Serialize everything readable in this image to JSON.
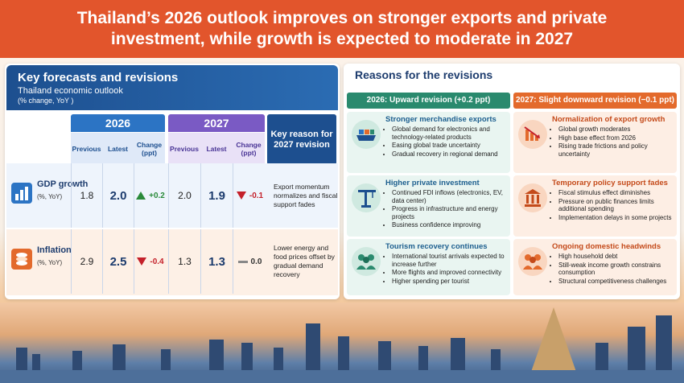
{
  "header": {
    "line1": "Thailand’s 2026 outlook improves on stronger exports and private",
    "line2": "investment, while growth is expected to moderate in 2027"
  },
  "left_panel": {
    "title": "Key forecasts and revisions",
    "subtitle": "Thailand economic outlook",
    "unit": "(% change, YoY )",
    "year_2026": "2026",
    "year_2027": "2027",
    "col_previous": "Previous",
    "col_latest": "Latest",
    "col_change": "Change (ppt)",
    "reason_header": "Key reason for 2027 revision",
    "rows": [
      {
        "label": "GDP growth",
        "unit": "(%, YoY)",
        "icon": "bar-chart-icon",
        "prev_2026": "1.8",
        "latest_2026": "2.0",
        "change_2026": "+0.2",
        "prev_2027": "2.0",
        "latest_2027": "1.9",
        "change_2027": "-0.1",
        "reason": "Export momentum normalizes and fiscal support fades"
      },
      {
        "label": "Inflation",
        "unit": "(%, YoY)",
        "icon": "coins-icon",
        "prev_2026": "2.9",
        "latest_2026": "2.5",
        "change_2026": "-0.4",
        "prev_2027": "1.3",
        "latest_2027": "1.3",
        "change_2027": "0.0",
        "reason": "Lower energy and food prices offset by gradual demand recovery"
      }
    ]
  },
  "right_panel": {
    "title": "Reasons for the revisions",
    "up_header": "2026: Upward revision (+0.2 ppt)",
    "down_header": "2027: Slight downward revision (−0.1 ppt)",
    "up_boxes": [
      {
        "title": "Stronger merchandise exports",
        "icon": "cargo-ship-icon",
        "bullets": [
          "Global demand for electronics and technology-related products",
          "Easing global trade uncertainty",
          "Gradual recovery in regional demand"
        ]
      },
      {
        "title": "Higher private investment",
        "icon": "construction-crane-icon",
        "bullets": [
          "Continued FDI inflows (electronics, EV, data center)",
          "Progress in infrastructure and energy projects",
          "Business confidence improving"
        ]
      },
      {
        "title": "Tourism recovery continues",
        "icon": "people-icon",
        "bullets": [
          "International tourist arrivals expected to increase further",
          "More flights and improved connectivity",
          "Higher spending per tourist"
        ]
      }
    ],
    "down_boxes": [
      {
        "title": "Normalization of export growth",
        "icon": "declining-chart-icon",
        "bullets": [
          "Global growth moderates",
          "High base effect from 2026",
          "Rising trade frictions and policy uncertainty"
        ]
      },
      {
        "title": "Temporary policy support fades",
        "icon": "government-building-icon",
        "bullets": [
          "Fiscal stimulus effect diminishes",
          "Pressure on public finances limits additional spending",
          "Implementation delays in some projects"
        ]
      },
      {
        "title": "Ongoing domestic headwinds",
        "icon": "people-icon",
        "bullets": [
          "High household debt",
          "Still-weak income growth constrains consumption",
          "Structural competitiveness challenges"
        ]
      }
    ]
  },
  "colors": {
    "header": "#e2552c",
    "blue": "#1d4f8f",
    "purple": "#7a5ac4",
    "green": "#2a8a6e",
    "orange": "#e36a2c",
    "up_arrow": "#2a8a3a",
    "down_arrow": "#c4202a"
  }
}
